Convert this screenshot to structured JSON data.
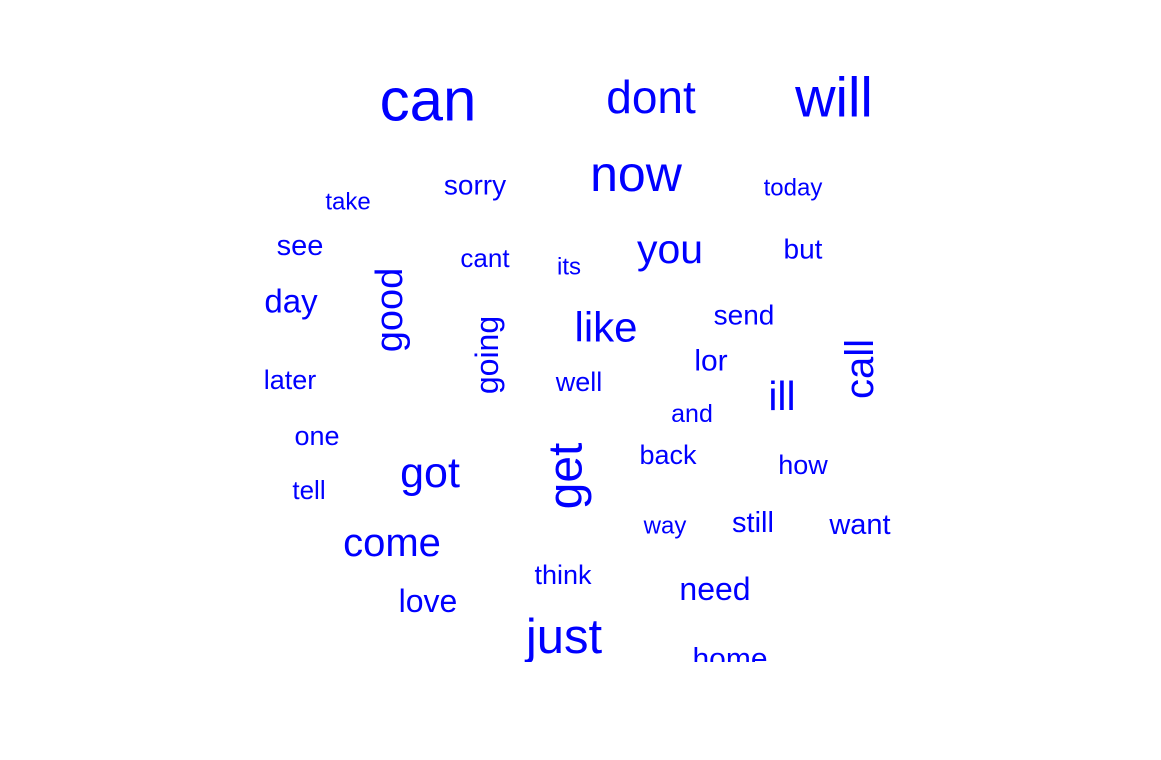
{
  "chart_data": {
    "type": "wordcloud",
    "color": "#0000ff",
    "words": [
      {
        "text": "can",
        "size": 60,
        "rotated": false
      },
      {
        "text": "dont",
        "size": 46,
        "rotated": false
      },
      {
        "text": "will",
        "size": 56,
        "rotated": false
      },
      {
        "text": "now",
        "size": 50,
        "rotated": false
      },
      {
        "text": "sorry",
        "size": 28,
        "rotated": false
      },
      {
        "text": "take",
        "size": 24,
        "rotated": false
      },
      {
        "text": "today",
        "size": 24,
        "rotated": false
      },
      {
        "text": "see",
        "size": 29,
        "rotated": false
      },
      {
        "text": "cant",
        "size": 26,
        "rotated": false
      },
      {
        "text": "its",
        "size": 24,
        "rotated": false
      },
      {
        "text": "you",
        "size": 41,
        "rotated": false
      },
      {
        "text": "but",
        "size": 28,
        "rotated": false
      },
      {
        "text": "day",
        "size": 33,
        "rotated": false
      },
      {
        "text": "good",
        "size": 38,
        "rotated": true
      },
      {
        "text": "going",
        "size": 32,
        "rotated": true
      },
      {
        "text": "like",
        "size": 42,
        "rotated": false
      },
      {
        "text": "send",
        "size": 28,
        "rotated": false
      },
      {
        "text": "lor",
        "size": 30,
        "rotated": false
      },
      {
        "text": "call",
        "size": 40,
        "rotated": true
      },
      {
        "text": "later",
        "size": 27,
        "rotated": false
      },
      {
        "text": "well",
        "size": 27,
        "rotated": false
      },
      {
        "text": "ill",
        "size": 41,
        "rotated": false
      },
      {
        "text": "and",
        "size": 25,
        "rotated": false
      },
      {
        "text": "one",
        "size": 27,
        "rotated": false
      },
      {
        "text": "get",
        "size": 48,
        "rotated": true
      },
      {
        "text": "back",
        "size": 27,
        "rotated": false
      },
      {
        "text": "how",
        "size": 27,
        "rotated": false
      },
      {
        "text": "got",
        "size": 43,
        "rotated": false
      },
      {
        "text": "tell",
        "size": 26,
        "rotated": false
      },
      {
        "text": "way",
        "size": 24,
        "rotated": false
      },
      {
        "text": "still",
        "size": 29,
        "rotated": false
      },
      {
        "text": "want",
        "size": 29,
        "rotated": false
      },
      {
        "text": "come",
        "size": 40,
        "rotated": false
      },
      {
        "text": "think",
        "size": 27,
        "rotated": false
      },
      {
        "text": "need",
        "size": 32,
        "rotated": false
      },
      {
        "text": "love",
        "size": 32,
        "rotated": false
      },
      {
        "text": "just",
        "size": 49,
        "rotated": false
      },
      {
        "text": "home",
        "size": 30,
        "rotated": false
      }
    ]
  }
}
